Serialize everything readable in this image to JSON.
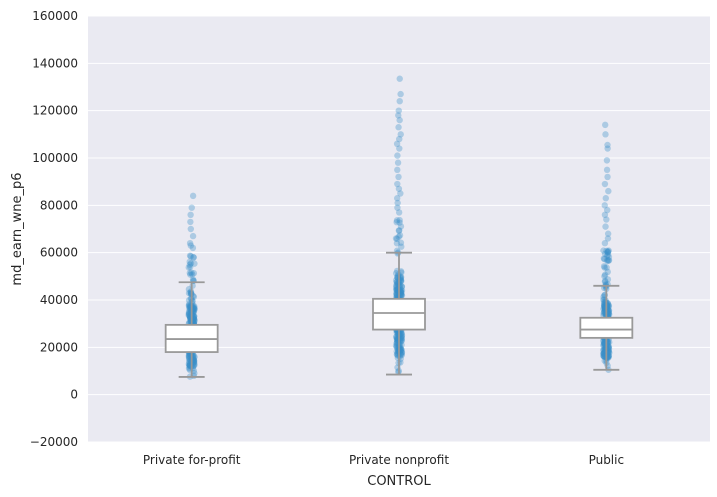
{
  "chart_data": {
    "type": "box",
    "xlabel": "CONTROL",
    "ylabel": "md_earn_wne_p6",
    "ylim": [
      -20000,
      160000
    ],
    "yticks": [
      -20000,
      0,
      20000,
      40000,
      60000,
      80000,
      100000,
      120000,
      140000,
      160000
    ],
    "grid": true,
    "categories": [
      "Private for-profit",
      "Private nonprofit",
      "Public"
    ],
    "boxes": [
      {
        "category": "Private for-profit",
        "whisker_low": 7500,
        "q1": 18000,
        "median": 23500,
        "q3": 29500,
        "whisker_high": 47500,
        "points_range": [
          7500,
          60000
        ],
        "outliers": [
          62000,
          63000,
          64000,
          67000,
          70000,
          73000,
          76000,
          79000,
          84000
        ]
      },
      {
        "category": "Private nonprofit",
        "whisker_low": 8500,
        "q1": 27500,
        "median": 34500,
        "q3": 40500,
        "whisker_high": 60000,
        "points_range": [
          8500,
          75000
        ],
        "outliers": [
          77000,
          79000,
          81000,
          83000,
          85000,
          87000,
          89000,
          92000,
          95000,
          98000,
          101000,
          104000,
          106000,
          108000,
          110000,
          113000,
          116000,
          118000,
          120000,
          124000,
          127000,
          133500
        ]
      },
      {
        "category": "Public",
        "whisker_low": 10500,
        "q1": 24000,
        "median": 27500,
        "q3": 32500,
        "whisker_high": 46000,
        "points_range": [
          10000,
          62000
        ],
        "outliers": [
          64000,
          66000,
          68000,
          71000,
          74000,
          76000,
          78000,
          80000,
          83000,
          86000,
          89000,
          92000,
          95000,
          99000,
          104000,
          105500,
          110000,
          114000
        ]
      }
    ],
    "colors": {
      "background": "#eaeaf2",
      "grid": "#ffffff",
      "point": "#3a8fc9",
      "box_edge": "#999999",
      "box_fill": "#ffffff"
    }
  }
}
